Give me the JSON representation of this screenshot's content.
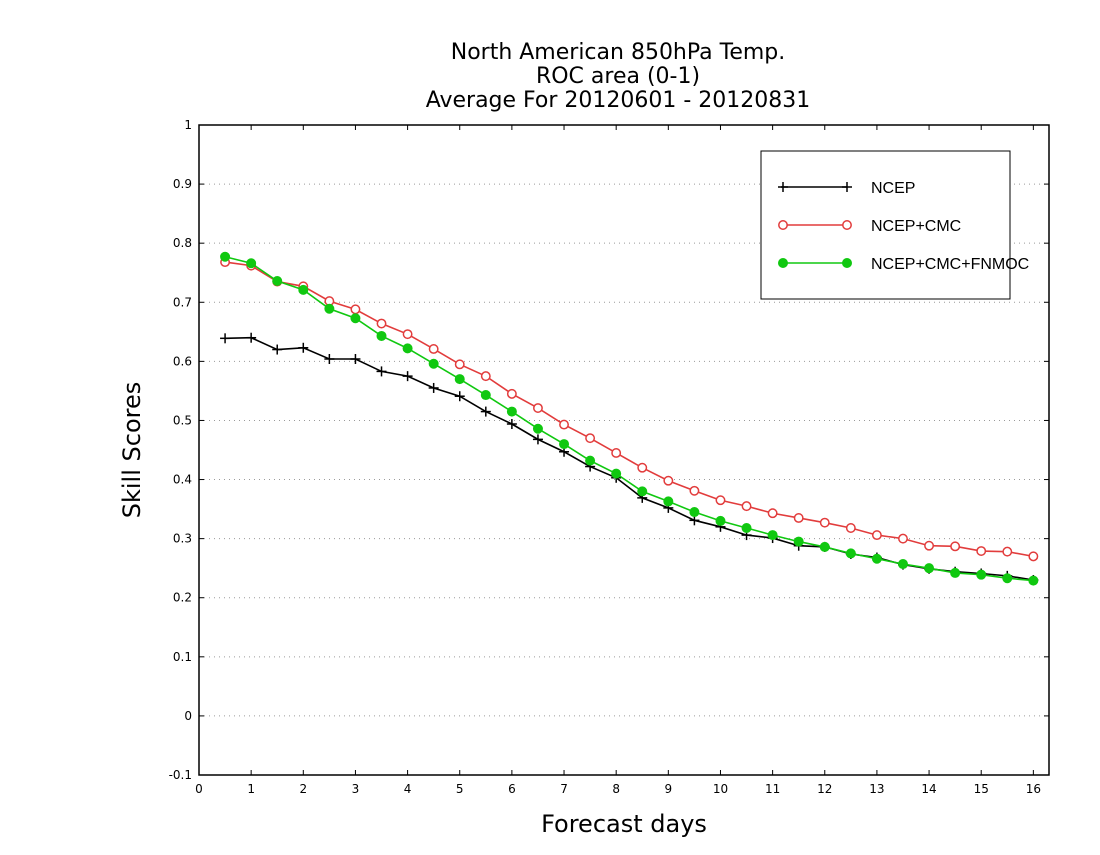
{
  "chart_data": {
    "type": "line",
    "title": [
      "North American 850hPa Temp.",
      "ROC area (0-1)",
      "Average For 20120601 - 20120831"
    ],
    "xlabel": "Forecast days",
    "ylabel": "Skill Scores",
    "xlim": [
      0,
      16.3
    ],
    "ylim": [
      -0.1,
      1
    ],
    "xticks": [
      0,
      1,
      2,
      3,
      4,
      5,
      6,
      7,
      8,
      9,
      10,
      11,
      12,
      13,
      14,
      15,
      16
    ],
    "yticks": [
      -0.1,
      0,
      0.1,
      0.2,
      0.3,
      0.4,
      0.5,
      0.6,
      0.7,
      0.8,
      0.9,
      1
    ],
    "ytick_labels": [
      "-0.1",
      "0",
      "0.1",
      "0.2",
      "0.3",
      "0.4",
      "0.5",
      "0.6",
      "0.7",
      "0.8",
      "0.9",
      "1"
    ],
    "grid": "horizontal-dotted",
    "legend": "top-right",
    "x": [
      0.5,
      1,
      1.5,
      2,
      2.5,
      3,
      3.5,
      4,
      4.5,
      5,
      5.5,
      6,
      6.5,
      7,
      7.5,
      8,
      8.5,
      9,
      9.5,
      10,
      10.5,
      11,
      11.5,
      12,
      12.5,
      13,
      13.5,
      14,
      14.5,
      15,
      15.5,
      16
    ],
    "series": [
      {
        "name": "NCEP",
        "color": "#000000",
        "marker": "plus",
        "values": [
          0.639,
          0.64,
          0.62,
          0.623,
          0.604,
          0.604,
          0.583,
          0.575,
          0.555,
          0.541,
          0.515,
          0.494,
          0.468,
          0.447,
          0.422,
          0.403,
          0.369,
          0.352,
          0.331,
          0.32,
          0.306,
          0.301,
          0.288,
          0.286,
          0.274,
          0.268,
          0.256,
          0.249,
          0.244,
          0.241,
          0.237,
          0.23
        ]
      },
      {
        "name": "NCEP+CMC",
        "color": "#e23c3c",
        "marker": "open-circle",
        "values": [
          0.768,
          0.762,
          0.735,
          0.727,
          0.702,
          0.688,
          0.664,
          0.646,
          0.621,
          0.595,
          0.575,
          0.545,
          0.521,
          0.493,
          0.47,
          0.445,
          0.42,
          0.398,
          0.381,
          0.365,
          0.355,
          0.343,
          0.335,
          0.327,
          0.318,
          0.306,
          0.3,
          0.288,
          0.287,
          0.279,
          0.278,
          0.27
        ]
      },
      {
        "name": "NCEP+CMC+FNMOC",
        "color": "#10c810",
        "marker": "filled-circle",
        "values": [
          0.777,
          0.766,
          0.736,
          0.721,
          0.689,
          0.673,
          0.643,
          0.622,
          0.596,
          0.57,
          0.543,
          0.515,
          0.486,
          0.46,
          0.432,
          0.41,
          0.38,
          0.363,
          0.345,
          0.33,
          0.318,
          0.306,
          0.295,
          0.286,
          0.275,
          0.266,
          0.257,
          0.25,
          0.242,
          0.239,
          0.233,
          0.229
        ]
      }
    ]
  }
}
